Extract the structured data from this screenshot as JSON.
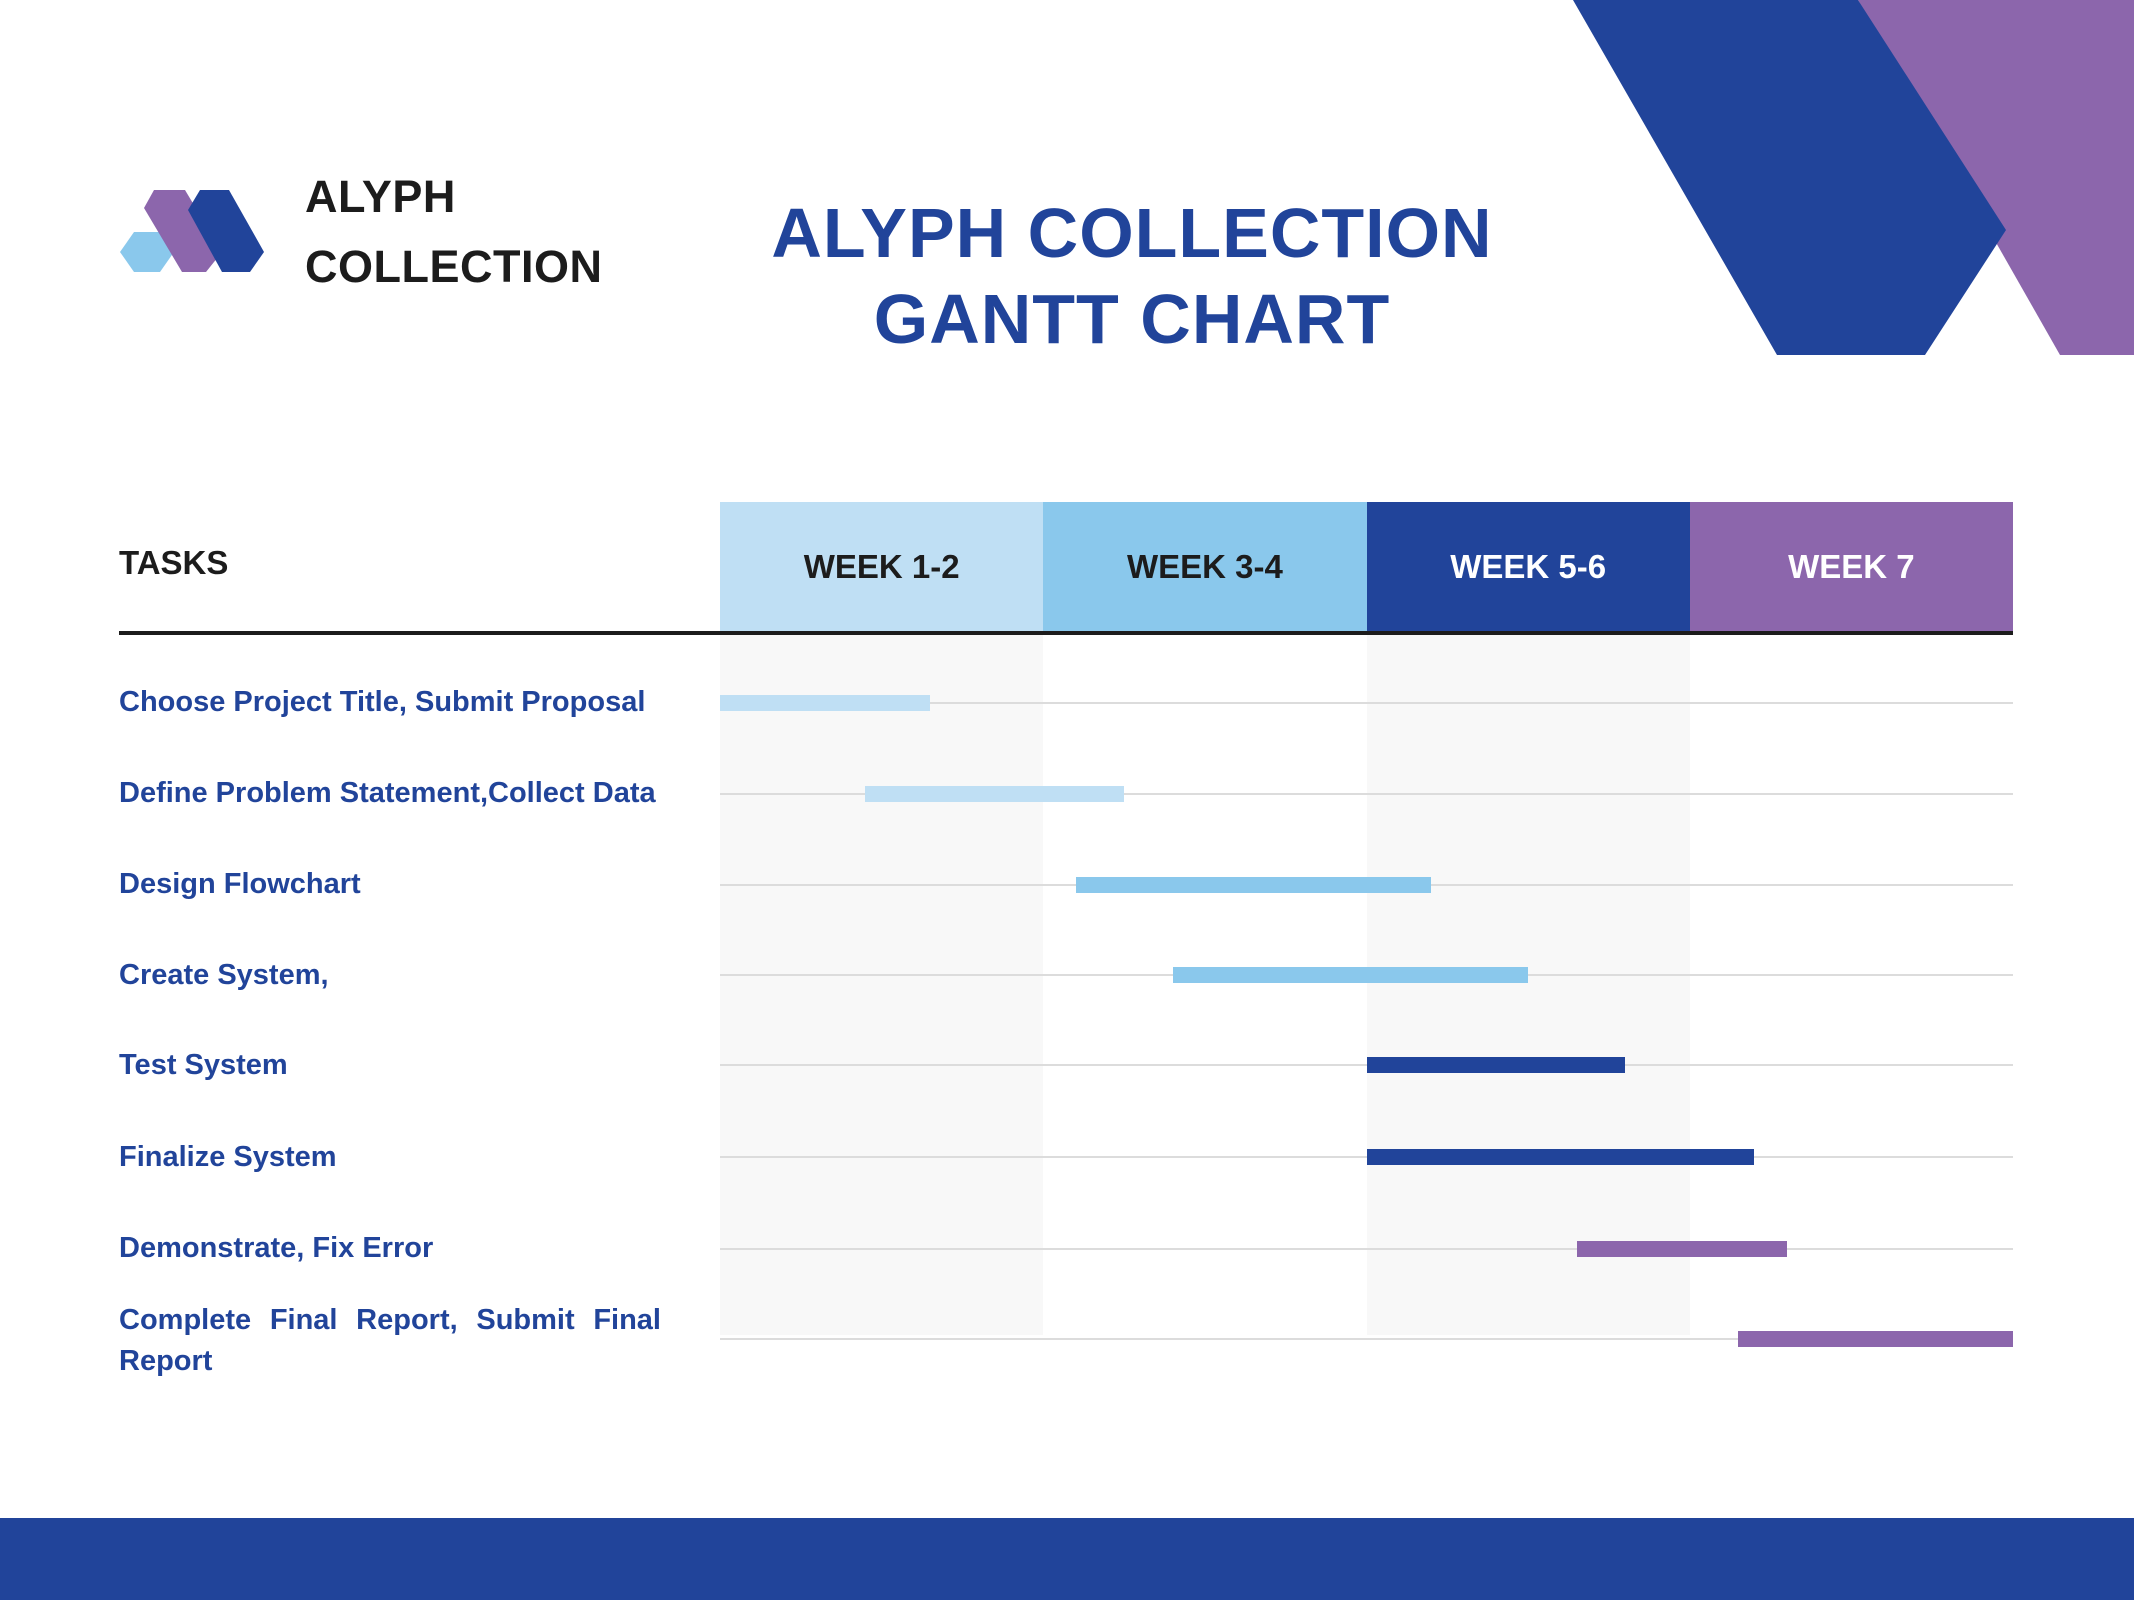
{
  "brand": {
    "name": "ALYPH\nCOLLECTION",
    "logo_colors": {
      "light": "#8ac8ec",
      "purple": "#8c66ac",
      "blue": "#21449a"
    }
  },
  "title": "ALYPH COLLECTION\nGANTT CHART",
  "colors": {
    "primary": "#21449a",
    "purple": "#8c66ac",
    "light_blue": "#bfdff4",
    "sky_blue": "#8ac8ec",
    "text_dark": "#1c1c1c"
  },
  "chart_data": {
    "type": "gantt",
    "tasks_header": "TASKS",
    "weeks": [
      {
        "label": "WEEK 1-2",
        "bg": "#bfdff4",
        "fg": "#1c1c1c"
      },
      {
        "label": "WEEK 3-4",
        "bg": "#8ac8ec",
        "fg": "#1c1c1c"
      },
      {
        "label": "WEEK 5-6",
        "bg": "#21449a",
        "fg": "#ffffff"
      },
      {
        "label": "WEEK 7",
        "bg": "#8c66ac",
        "fg": "#ffffff"
      }
    ],
    "x_unit": "weeks",
    "x_range": [
      0,
      8
    ],
    "tasks": [
      {
        "label": "Choose Project Title, Submit Proposal",
        "start": 0.0,
        "end": 1.3,
        "color": "#bfdff4"
      },
      {
        "label": "Define Problem Statement,Collect Data",
        "start": 0.9,
        "end": 2.5,
        "color": "#bfdff4"
      },
      {
        "label": "Design Flowchart",
        "start": 2.2,
        "end": 4.4,
        "color": "#8ac8ec"
      },
      {
        "label": "Create System,",
        "start": 2.8,
        "end": 5.0,
        "color": "#8ac8ec"
      },
      {
        "label": "Test System",
        "start": 4.0,
        "end": 5.6,
        "color": "#21449a"
      },
      {
        "label": "Finalize System",
        "start": 4.0,
        "end": 6.4,
        "color": "#21449a"
      },
      {
        "label": "Demonstrate, Fix Error",
        "start": 5.3,
        "end": 6.6,
        "color": "#8c66ac"
      },
      {
        "label": "Complete Final Report, Submit Final Report",
        "start": 6.3,
        "end": 8.0,
        "color": "#8c66ac"
      }
    ]
  }
}
